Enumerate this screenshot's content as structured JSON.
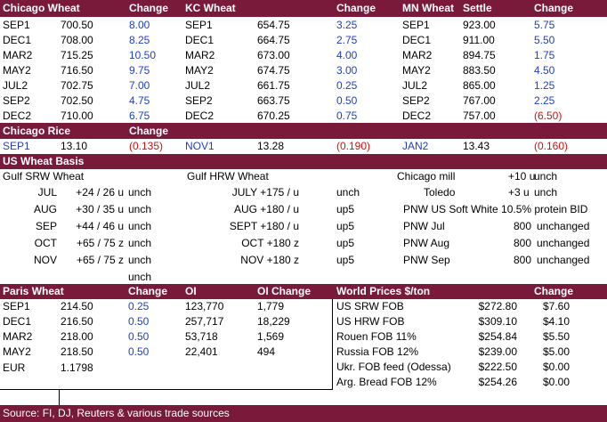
{
  "wheat_header": {
    "chicago": "Chicago Wheat",
    "change1": "Change",
    "kc": "KC Wheat",
    "change2": "Change",
    "mn": "MN Wheat",
    "settle": "Settle",
    "change3": "Change"
  },
  "chicago_wheat": [
    {
      "month": "SEP1",
      "price": "700.50",
      "change": "8.00"
    },
    {
      "month": "DEC1",
      "price": "708.00",
      "change": "8.25"
    },
    {
      "month": "MAR2",
      "price": "715.25",
      "change": "10.50"
    },
    {
      "month": "MAY2",
      "price": "716.50",
      "change": "9.75"
    },
    {
      "month": "JUL2",
      "price": "702.75",
      "change": "7.00"
    },
    {
      "month": "SEP2",
      "price": "702.50",
      "change": "4.75"
    },
    {
      "month": "DEC2",
      "price": "710.00",
      "change": "6.75"
    }
  ],
  "kc_wheat": [
    {
      "month": "SEP1",
      "price": "654.75",
      "change": "3.25"
    },
    {
      "month": "DEC1",
      "price": "664.75",
      "change": "2.75"
    },
    {
      "month": "MAR2",
      "price": "673.00",
      "change": "4.00"
    },
    {
      "month": "MAY2",
      "price": "674.75",
      "change": "3.00"
    },
    {
      "month": "JUL2",
      "price": "661.75",
      "change": "0.25"
    },
    {
      "month": "SEP2",
      "price": "663.75",
      "change": "0.50"
    },
    {
      "month": "DEC2",
      "price": "670.25",
      "change": "0.75"
    }
  ],
  "mn_wheat": [
    {
      "month": "SEP1",
      "price": "923.00",
      "change": "5.75"
    },
    {
      "month": "DEC1",
      "price": "911.00",
      "change": "5.50"
    },
    {
      "month": "MAR2",
      "price": "894.75",
      "change": "1.75"
    },
    {
      "month": "MAY2",
      "price": "883.50",
      "change": "4.50"
    },
    {
      "month": "JUL2",
      "price": "865.00",
      "change": "1.25"
    },
    {
      "month": "SEP2",
      "price": "767.00",
      "change": "2.25"
    },
    {
      "month": "DEC2",
      "price": "757.00",
      "change": "(6.50)"
    }
  ],
  "rice_header": {
    "title": "Chicago Rice",
    "change": "Change"
  },
  "rice": [
    {
      "month": "SEP1",
      "price": "13.10",
      "change": "(0.135)"
    },
    {
      "month": "NOV1",
      "price": "13.28",
      "change": "(0.190)"
    },
    {
      "month": "JAN2",
      "price": "13.43",
      "change": "(0.160)"
    }
  ],
  "basis_header": "US Wheat Basis",
  "gulf_srw": {
    "title": "Gulf SRW Wheat",
    "rows": [
      {
        "month": "JUL",
        "basis": "+24 / 26 u",
        "chg": "unch"
      },
      {
        "month": "AUG",
        "basis": "+30 / 35 u",
        "chg": "unch"
      },
      {
        "month": "SEP",
        "basis": "+44 / 46 u",
        "chg": "unch"
      },
      {
        "month": "OCT",
        "basis": "+65 / 75 z",
        "chg": "unch"
      },
      {
        "month": "NOV",
        "basis": "+65 / 75 z",
        "chg": "unch"
      },
      {
        "month": "",
        "basis": "",
        "chg": "unch"
      }
    ]
  },
  "gulf_hrw": {
    "title": "Gulf HRW Wheat",
    "rows": [
      {
        "label": "JULY +175 / u",
        "chg": "unch"
      },
      {
        "label": "AUG +180 / u",
        "chg": "up5"
      },
      {
        "label": "SEPT +180 / u",
        "chg": "up5"
      },
      {
        "label": "OCT +180 z",
        "chg": "up5"
      },
      {
        "label": "NOV +180 z",
        "chg": "up5"
      }
    ]
  },
  "mills": {
    "chicago_label": "Chicago mill",
    "chicago_val": "+10 u",
    "chicago_chg": "unch",
    "toledo_label": "Toledo",
    "toledo_val": "+3 u",
    "toledo_chg": "unch",
    "pnw_note": "PNW US Soft White 10.5% protein BID",
    "pnw": [
      {
        "label": "PNW Jul",
        "val": "800",
        "chg": "unchanged"
      },
      {
        "label": "PNW Aug",
        "val": "800",
        "chg": "unchanged"
      },
      {
        "label": "PNW Sep",
        "val": "800",
        "chg": "unchanged"
      }
    ]
  },
  "paris_header": {
    "title": "Paris Wheat",
    "change": "Change",
    "oi": "OI",
    "oi_change": "OI Change"
  },
  "paris": [
    {
      "month": "SEP1",
      "price": "214.50",
      "change": "0.25",
      "oi": "123,770",
      "oi_change": "1,779"
    },
    {
      "month": "DEC1",
      "price": "216.50",
      "change": "0.50",
      "oi": "257,717",
      "oi_change": "18,229"
    },
    {
      "month": "MAR2",
      "price": "218.00",
      "change": "0.50",
      "oi": "53,718",
      "oi_change": "1,569"
    },
    {
      "month": "MAY2",
      "price": "218.50",
      "change": "0.50",
      "oi": "22,401",
      "oi_change": "494"
    }
  ],
  "eur": {
    "label": "EUR",
    "value": "1.1798"
  },
  "world_header": {
    "title": "World Prices $/ton",
    "change": "Change"
  },
  "world": [
    {
      "label": "US SRW FOB",
      "price": "$272.80",
      "change": "$7.60"
    },
    {
      "label": "US HRW FOB",
      "price": "$309.10",
      "change": "$4.10"
    },
    {
      "label": "Rouen FOB 11%",
      "price": "$254.84",
      "change": "$5.50"
    },
    {
      "label": "Russia FOB 12%",
      "price": "$239.00",
      "change": "$5.00"
    },
    {
      "label": "Ukr. FOB feed (Odessa)",
      "price": "$222.50",
      "change": "$0.00"
    },
    {
      "label": "Arg. Bread FOB 12%",
      "price": "$254.26",
      "change": "$0.00"
    }
  ],
  "source": "Source: FI, DJ, Reuters & various trade sources",
  "colors": {
    "header": "#7a1a3a",
    "positive": "#1f3ec7",
    "negative": "#d01010"
  }
}
